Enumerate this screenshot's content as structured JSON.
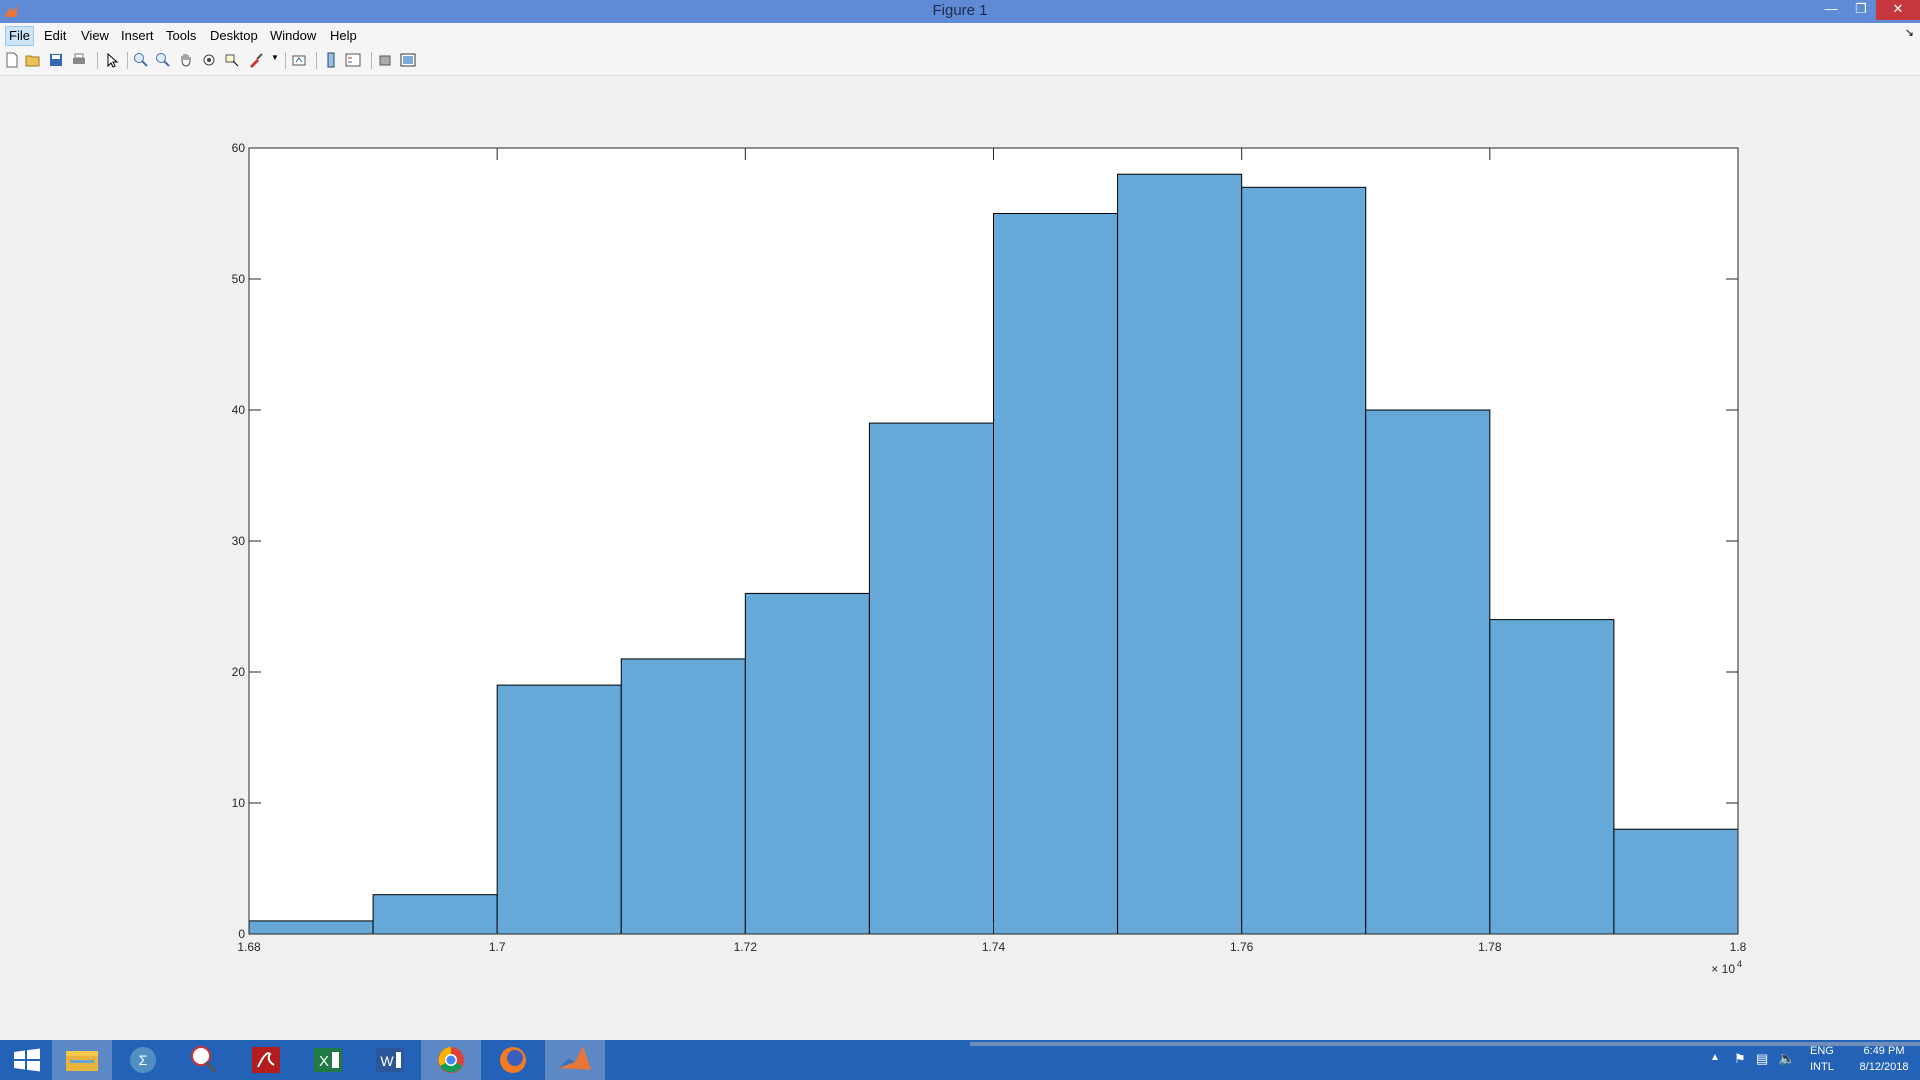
{
  "window": {
    "title": "Figure 1",
    "controls": [
      "minimize-icon",
      "restore-icon",
      "close-icon"
    ]
  },
  "menu": {
    "items": [
      "File",
      "Edit",
      "View",
      "Insert",
      "Tools",
      "Desktop",
      "Window",
      "Help"
    ],
    "active": "File"
  },
  "toolbar": {
    "icons": [
      "new-figure-icon",
      "open-file-icon",
      "save-icon",
      "print-icon",
      "edit-plot-arrow-icon",
      "zoom-in-icon",
      "zoom-out-icon",
      "pan-hand-icon",
      "rotate-3d-icon",
      "data-cursor-icon",
      "brush-icon",
      "link-plot-icon",
      "colorbar-icon",
      "legend-icon",
      "hide-plot-tools-icon",
      "show-plot-tools-icon"
    ]
  },
  "chart_data": {
    "type": "bar",
    "subtype": "histogram",
    "bin_edges": [
      16800,
      16900,
      17000,
      17100,
      17200,
      17300,
      17400,
      17500,
      17600,
      17700,
      17800,
      17900,
      18000
    ],
    "values": [
      1,
      3,
      19,
      21,
      26,
      39,
      55,
      58,
      57,
      40,
      24,
      8
    ],
    "xlim": [
      16800,
      18000
    ],
    "ylim": [
      0,
      60
    ],
    "x_ticks": [
      1.68,
      1.7,
      1.72,
      1.74,
      1.76,
      1.78,
      1.8
    ],
    "x_tick_labels": [
      "1.68",
      "1.7",
      "1.72",
      "1.74",
      "1.76",
      "1.78",
      "1.8"
    ],
    "y_ticks": [
      0,
      10,
      20,
      30,
      40,
      50,
      60
    ],
    "y_tick_labels": [
      "0",
      "10",
      "20",
      "30",
      "40",
      "50",
      "60"
    ],
    "x_exponent_label": {
      "base": "× 10",
      "exponent": "4"
    },
    "title": "",
    "xlabel": "",
    "ylabel": "",
    "grid": false,
    "bar_color": "#66a8d7",
    "edge_color": "#000000"
  },
  "taskbar": {
    "apps": [
      "windows-start-icon",
      "file-explorer-icon",
      "maple-icon",
      "snipping-tool-icon",
      "adobe-acrobat-icon",
      "excel-icon",
      "word-icon",
      "chrome-icon",
      "firefox-icon",
      "matlab-icon"
    ],
    "active_app": "matlab-icon",
    "tray": {
      "lang_top": "ENG",
      "lang_bottom": "INTL",
      "time": "6:49 PM",
      "date": "8/12/2018"
    },
    "colors": {
      "bar": "#2362b6",
      "active": "#5d88c6"
    }
  }
}
